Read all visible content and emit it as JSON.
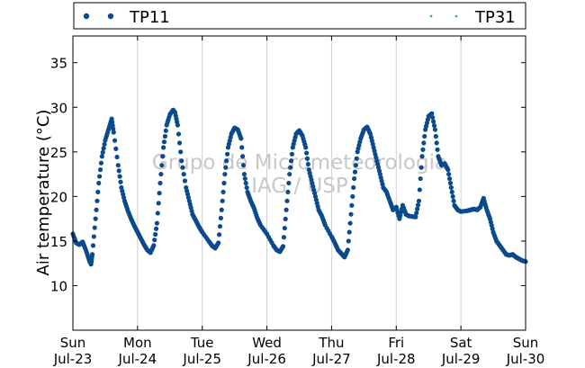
{
  "chart_data": {
    "type": "scatter",
    "ylabel": "Air temperature (°C)",
    "xlabel": "",
    "title": "",
    "ylim": [
      5,
      38
    ],
    "yticks": [
      10,
      15,
      20,
      25,
      30,
      35
    ],
    "xlim": [
      0,
      7
    ],
    "xticks": [
      {
        "x": 0,
        "day": "Sun",
        "date": "Jul-23"
      },
      {
        "x": 1,
        "day": "Mon",
        "date": "Jul-24"
      },
      {
        "x": 2,
        "day": "Tue",
        "date": "Jul-25"
      },
      {
        "x": 3,
        "day": "Wed",
        "date": "Jul-26"
      },
      {
        "x": 4,
        "day": "Thu",
        "date": "Jul-27"
      },
      {
        "x": 5,
        "day": "Fri",
        "date": "Jul-28"
      },
      {
        "x": 6,
        "day": "Sat",
        "date": "Jul-29"
      },
      {
        "x": 7,
        "day": "Sun",
        "date": "Jul-30"
      }
    ],
    "grid": "vertical",
    "legend_position": "top",
    "watermark": [
      "Grupo de Micrometeorologia",
      "IAG / USP"
    ],
    "series": [
      {
        "name": "TP11",
        "color": "#0b4a8c",
        "points": [
          [
            0.0,
            15.8
          ],
          [
            0.05,
            14.8
          ],
          [
            0.1,
            14.6
          ],
          [
            0.15,
            14.9
          ],
          [
            0.2,
            14.0
          ],
          [
            0.25,
            12.9
          ],
          [
            0.28,
            12.4
          ],
          [
            0.3,
            13.5
          ],
          [
            0.35,
            17.5
          ],
          [
            0.4,
            21.5
          ],
          [
            0.45,
            24.5
          ],
          [
            0.5,
            26.3
          ],
          [
            0.55,
            27.5
          ],
          [
            0.6,
            28.7
          ],
          [
            0.63,
            27.2
          ],
          [
            0.7,
            23.5
          ],
          [
            0.75,
            21.0
          ],
          [
            0.8,
            19.5
          ],
          [
            0.85,
            18.4
          ],
          [
            0.9,
            17.5
          ],
          [
            0.95,
            16.7
          ],
          [
            1.0,
            16.0
          ],
          [
            1.05,
            15.3
          ],
          [
            1.1,
            14.6
          ],
          [
            1.15,
            14.0
          ],
          [
            1.2,
            13.7
          ],
          [
            1.25,
            14.5
          ],
          [
            1.3,
            17.0
          ],
          [
            1.35,
            21.5
          ],
          [
            1.4,
            25.5
          ],
          [
            1.45,
            28.0
          ],
          [
            1.5,
            29.2
          ],
          [
            1.55,
            29.7
          ],
          [
            1.58,
            29.4
          ],
          [
            1.62,
            28.0
          ],
          [
            1.68,
            24.0
          ],
          [
            1.75,
            21.0
          ],
          [
            1.8,
            19.5
          ],
          [
            1.85,
            18.0
          ],
          [
            1.9,
            17.3
          ],
          [
            1.95,
            16.6
          ],
          [
            2.0,
            16.0
          ],
          [
            2.1,
            15.0
          ],
          [
            2.15,
            14.5
          ],
          [
            2.2,
            14.2
          ],
          [
            2.25,
            14.8
          ],
          [
            2.3,
            18.5
          ],
          [
            2.35,
            22.5
          ],
          [
            2.4,
            25.5
          ],
          [
            2.45,
            27.0
          ],
          [
            2.5,
            27.7
          ],
          [
            2.55,
            27.5
          ],
          [
            2.6,
            26.5
          ],
          [
            2.65,
            22.5
          ],
          [
            2.7,
            20.5
          ],
          [
            2.75,
            19.5
          ],
          [
            2.8,
            18.7
          ],
          [
            2.85,
            17.6
          ],
          [
            2.9,
            16.8
          ],
          [
            3.0,
            15.8
          ],
          [
            3.1,
            14.5
          ],
          [
            3.15,
            14.0
          ],
          [
            3.2,
            13.8
          ],
          [
            3.25,
            14.4
          ],
          [
            3.3,
            18.5
          ],
          [
            3.35,
            22.5
          ],
          [
            3.4,
            25.5
          ],
          [
            3.45,
            27.0
          ],
          [
            3.5,
            27.4
          ],
          [
            3.55,
            26.8
          ],
          [
            3.6,
            25.5
          ],
          [
            3.65,
            23.0
          ],
          [
            3.7,
            21.5
          ],
          [
            3.75,
            20.0
          ],
          [
            3.8,
            18.5
          ],
          [
            3.85,
            17.8
          ],
          [
            3.9,
            16.8
          ],
          [
            4.0,
            15.5
          ],
          [
            4.05,
            14.8
          ],
          [
            4.1,
            14.0
          ],
          [
            4.15,
            13.6
          ],
          [
            4.2,
            13.2
          ],
          [
            4.25,
            14.0
          ],
          [
            4.3,
            18.0
          ],
          [
            4.35,
            22.0
          ],
          [
            4.4,
            25.0
          ],
          [
            4.45,
            26.5
          ],
          [
            4.5,
            27.5
          ],
          [
            4.55,
            27.8
          ],
          [
            4.6,
            27.0
          ],
          [
            4.65,
            25.5
          ],
          [
            4.7,
            24.0
          ],
          [
            4.75,
            22.5
          ],
          [
            4.8,
            21.0
          ],
          [
            4.85,
            20.5
          ],
          [
            4.9,
            19.5
          ],
          [
            4.95,
            18.5
          ],
          [
            5.0,
            18.8
          ],
          [
            5.05,
            17.5
          ],
          [
            5.1,
            19.0
          ],
          [
            5.15,
            18.0
          ],
          [
            5.2,
            17.8
          ],
          [
            5.3,
            17.7
          ],
          [
            5.35,
            19.5
          ],
          [
            5.4,
            24.5
          ],
          [
            5.45,
            27.5
          ],
          [
            5.5,
            29.0
          ],
          [
            5.55,
            29.3
          ],
          [
            5.6,
            27.5
          ],
          [
            5.65,
            24.5
          ],
          [
            5.7,
            23.5
          ],
          [
            5.75,
            23.7
          ],
          [
            5.8,
            23.0
          ],
          [
            5.85,
            21.0
          ],
          [
            5.9,
            19.0
          ],
          [
            5.95,
            18.5
          ],
          [
            6.0,
            18.3
          ],
          [
            6.1,
            18.4
          ],
          [
            6.15,
            18.5
          ],
          [
            6.2,
            18.6
          ],
          [
            6.25,
            18.5
          ],
          [
            6.3,
            18.8
          ],
          [
            6.35,
            19.8
          ],
          [
            6.4,
            18.5
          ],
          [
            6.45,
            17.5
          ],
          [
            6.5,
            16.0
          ],
          [
            6.55,
            15.0
          ],
          [
            6.6,
            14.5
          ],
          [
            6.65,
            14.0
          ],
          [
            6.7,
            13.5
          ],
          [
            6.75,
            13.4
          ],
          [
            6.8,
            13.5
          ],
          [
            6.85,
            13.2
          ],
          [
            6.9,
            13.0
          ],
          [
            6.95,
            12.8
          ],
          [
            7.0,
            12.7
          ]
        ]
      },
      {
        "name": "TP31",
        "color": "#3aa7a7",
        "points": []
      }
    ]
  }
}
